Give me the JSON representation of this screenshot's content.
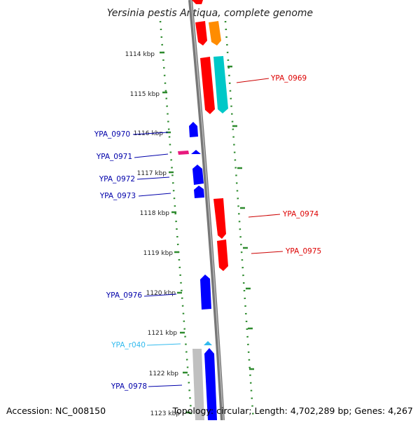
{
  "title": "Yersinia pestis Antiqua, complete genome",
  "footer": {
    "accession": "Accession: NC_008150",
    "topology": "Topology: circular; Length: 4,702,289 bp; Genes: 4,267"
  },
  "colors": {
    "forward_gene": "#ff0000",
    "reverse_gene": "#0000ff",
    "rna": "#33bbee",
    "tick_dots": "#2e8b2e",
    "backbone": "#888888",
    "orange_feature": "#ff8c00",
    "cyan_feature": "#00c8c8",
    "magenta_feature": "#e8197d",
    "grey_feature": "#c0c0c0"
  },
  "scale_labels": [
    "1114 kbp",
    "1115 kbp",
    "1116 kbp",
    "1117 kbp",
    "1118 kbp",
    "1119 kbp",
    "1120 kbp",
    "1121 kbp",
    "1122 kbp",
    "1123 kbp"
  ],
  "gene_labels": [
    {
      "text": "YPA_0969",
      "strand": "forward"
    },
    {
      "text": "YPA_0970",
      "strand": "reverse"
    },
    {
      "text": "YPA_0971",
      "strand": "reverse"
    },
    {
      "text": "YPA_0972",
      "strand": "reverse"
    },
    {
      "text": "YPA_0973",
      "strand": "reverse"
    },
    {
      "text": "YPA_0974",
      "strand": "forward"
    },
    {
      "text": "YPA_0975",
      "strand": "forward"
    },
    {
      "text": "YPA_0976",
      "strand": "reverse"
    },
    {
      "text": "YPA_r040",
      "strand": "rna"
    },
    {
      "text": "YPA_0978",
      "strand": "reverse"
    }
  ]
}
